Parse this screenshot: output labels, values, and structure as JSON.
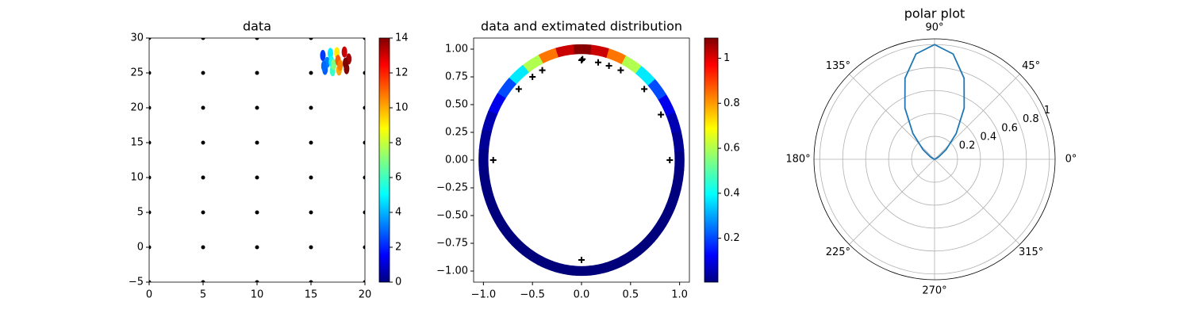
{
  "chart_data": [
    {
      "type": "scatter",
      "title": "data",
      "xlim": [
        0,
        20
      ],
      "xticks": [
        0,
        5,
        10,
        15,
        20
      ],
      "ylim": [
        -5,
        30
      ],
      "yticks": [
        {
          "value": -5,
          "label": "−5"
        },
        0,
        5,
        10,
        15,
        20,
        25,
        30
      ],
      "series": [
        {
          "color": "#000000",
          "x": [
            0,
            0,
            0,
            0,
            0,
            0,
            0,
            0,
            5,
            5,
            5,
            5,
            5,
            5,
            5,
            5,
            10,
            10,
            10,
            10,
            10,
            10,
            10,
            10,
            15,
            15,
            15,
            15,
            15,
            15,
            15,
            15,
            20,
            20,
            20,
            20,
            20,
            20,
            20,
            20
          ],
          "values": [
            -5,
            0,
            5,
            10,
            15,
            20,
            25,
            30,
            -5,
            0,
            5,
            10,
            15,
            20,
            25,
            30,
            -5,
            0,
            5,
            10,
            15,
            20,
            25,
            30,
            -5,
            0,
            5,
            10,
            15,
            20,
            25,
            30,
            -5,
            0,
            5,
            10,
            15,
            20,
            25,
            30
          ]
        }
      ],
      "colored_points": {
        "x": [
          16.1,
          16.3,
          16.5,
          16.2,
          16.8,
          17.0,
          16.9,
          17.1,
          17.4,
          17.6,
          17.5,
          17.7,
          18.1,
          18.3,
          18.5,
          18.2
        ],
        "values": [
          27.5,
          25.5,
          26.5,
          26.0,
          27.8,
          25.3,
          26.6,
          26.2,
          27.9,
          25.4,
          26.8,
          26.1,
          28.0,
          25.6,
          27.0,
          26.4
        ],
        "c": [
          2.5,
          3,
          3.5,
          3.2,
          5,
          6,
          5.5,
          7,
          9,
          10,
          11,
          10.5,
          13,
          14,
          13.5,
          14
        ]
      },
      "colorbar": {
        "cmap": "jet",
        "lim": [
          0,
          14
        ],
        "ticks": [
          0,
          2,
          4,
          6,
          8,
          10,
          12,
          14
        ]
      }
    },
    {
      "type": "scatter",
      "title": "data and extimated distribution",
      "xlim": [
        -1.1,
        1.1
      ],
      "xticks": [
        {
          "value": -1,
          "label": "−1.0"
        },
        {
          "value": -0.5,
          "label": "−0.5"
        },
        {
          "value": 0,
          "label": "0.0"
        },
        {
          "value": 0.5,
          "label": "0.5"
        },
        {
          "value": 1,
          "label": "1.0"
        }
      ],
      "ylim": [
        -1.1,
        1.1
      ],
      "yticks": [
        {
          "value": -1,
          "label": "−1.00"
        },
        {
          "value": -0.75,
          "label": "−0.75"
        },
        {
          "value": -0.5,
          "label": "−0.50"
        },
        {
          "value": -0.25,
          "label": "−0.25"
        },
        {
          "value": 0,
          "label": "0.00"
        },
        {
          "value": 0.25,
          "label": "0.25"
        },
        {
          "value": 0.5,
          "label": "0.50"
        },
        {
          "value": 0.75,
          "label": "0.75"
        },
        {
          "value": 1,
          "label": "1.00"
        }
      ],
      "series": [
        {
          "color": "#000000",
          "marker": "+",
          "x": [
            0,
            0.17,
            0.28,
            0.4,
            0.64,
            0.81,
            0.9,
            0,
            -0.9,
            -0.64,
            -0.5,
            -0.4,
            0.01
          ],
          "values": [
            0.9,
            0.88,
            0.85,
            0.81,
            0.64,
            0.41,
            0,
            -0.9,
            0,
            0.64,
            0.75,
            0.81,
            0.91
          ]
        }
      ],
      "ring": {
        "theta": [
          0,
          10,
          20,
          30,
          40,
          50,
          60,
          70,
          80,
          90,
          100,
          110,
          120,
          130,
          140,
          150,
          160,
          170,
          180,
          190,
          200,
          210,
          220,
          230,
          240,
          250,
          260,
          270,
          280,
          290,
          300,
          310,
          320,
          330,
          340,
          350
        ],
        "values": [
          0.013,
          0.029,
          0.06,
          0.12,
          0.22,
          0.39,
          0.6,
          0.83,
          1.01,
          1.08,
          1.01,
          0.83,
          0.6,
          0.39,
          0.22,
          0.12,
          0.06,
          0.029,
          0.013,
          0.006,
          0.003,
          0.001,
          0.001,
          0,
          0,
          0,
          0,
          0,
          0,
          0,
          0,
          0,
          0.001,
          0.001,
          0.003,
          0.006
        ]
      },
      "colorbar": {
        "cmap": "jet",
        "lim": [
          0.005,
          1.09
        ],
        "ticks": [
          0.2,
          0.4,
          0.6,
          0.8,
          1.0
        ]
      }
    },
    {
      "type": "polar",
      "title": "polar plot",
      "color": "#1f77b4",
      "rlim": [
        0,
        1.05
      ],
      "rticks": [
        0.2,
        0.4,
        0.6,
        0.8,
        1.0
      ],
      "thetaticks": [
        {
          "value": 0,
          "label": "0°"
        },
        {
          "value": 45,
          "label": "45°"
        },
        {
          "value": 90,
          "label": "90°"
        },
        {
          "value": 135,
          "label": "135°"
        },
        {
          "value": 180,
          "label": "180°"
        },
        {
          "value": 225,
          "label": "225°"
        },
        {
          "value": 270,
          "label": "270°"
        },
        {
          "value": 315,
          "label": "315°"
        }
      ],
      "theta": [
        0,
        10,
        20,
        30,
        40,
        50,
        60,
        70,
        80,
        90,
        100,
        110,
        120,
        130,
        140,
        150,
        160,
        170,
        180
      ],
      "values": [
        0,
        0.0003,
        0.0072,
        0.041,
        0.131,
        0.293,
        0.516,
        0.752,
        0.932,
        1.0,
        0.932,
        0.752,
        0.516,
        0.293,
        0.131,
        0.041,
        0.0072,
        0.0003,
        0
      ]
    }
  ]
}
